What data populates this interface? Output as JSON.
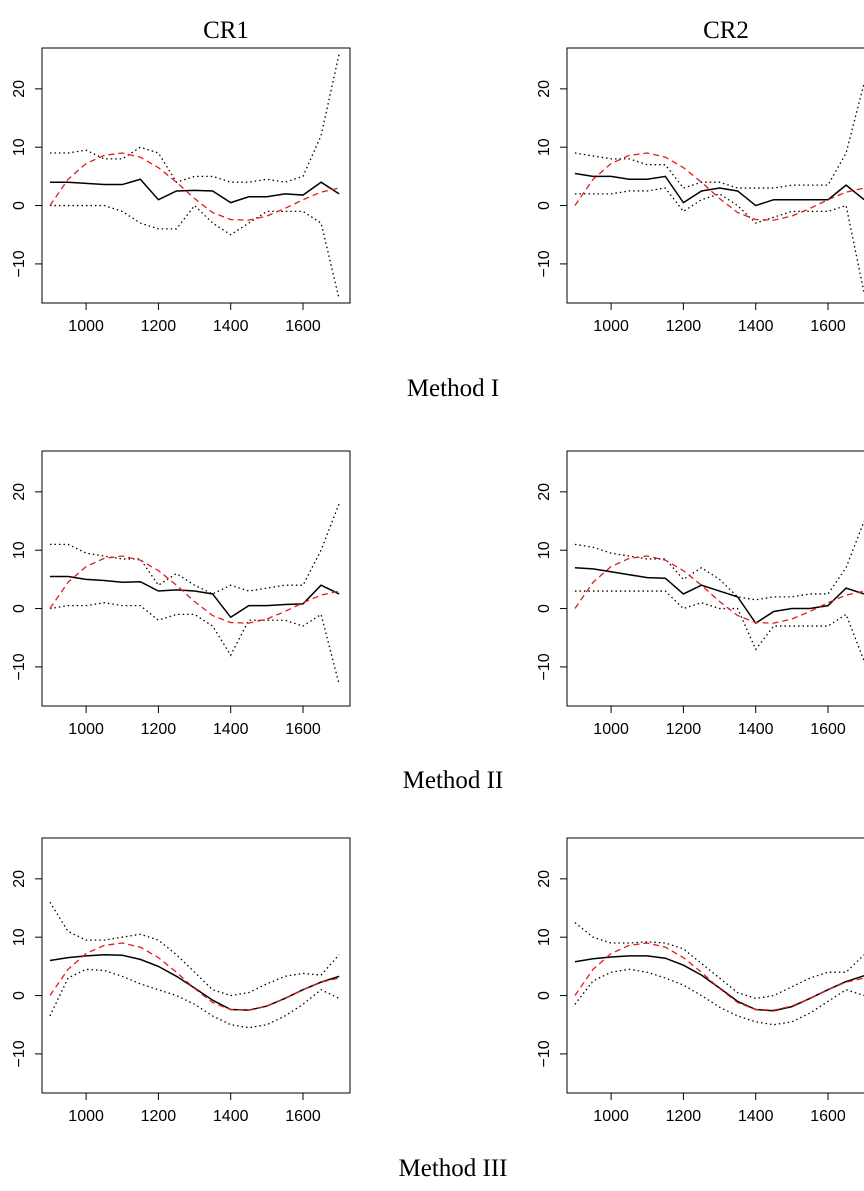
{
  "column_titles": [
    "CR1",
    "CR2"
  ],
  "row_titles": [
    "Method I",
    "Method II",
    "Method III"
  ],
  "chart_data": [
    {
      "type": "line",
      "x": [
        900,
        950,
        1000,
        1050,
        1100,
        1150,
        1200,
        1250,
        1300,
        1350,
        1400,
        1450,
        1500,
        1550,
        1600,
        1650,
        1700
      ],
      "xlim": [
        878,
        1730
      ],
      "ylim": [
        -16.7,
        27
      ],
      "xticks": [
        1000,
        1200,
        1400,
        1600
      ],
      "yticks": [
        {
          "value": -10,
          "label": "−10"
        },
        0,
        10,
        20
      ],
      "series": [
        {
          "color": "#000000",
          "style": "solid",
          "values": [
            4,
            4,
            3.8,
            3.6,
            3.6,
            4.5,
            1,
            2.5,
            2.6,
            2.5,
            0.5,
            1.5,
            1.5,
            2,
            1.8,
            4,
            2
          ]
        },
        {
          "color": "#000000",
          "style": "dotted",
          "values": [
            9,
            9,
            9.5,
            8,
            8,
            10,
            9,
            4,
            5,
            5,
            4,
            4,
            4.5,
            4,
            5,
            12,
            26
          ]
        },
        {
          "color": "#000000",
          "style": "dotted",
          "values": [
            0,
            0,
            0,
            0,
            -1,
            -3,
            -4,
            -4,
            0,
            -3,
            -5,
            -3,
            -1,
            -1,
            -1,
            -3,
            -16
          ]
        },
        {
          "color": "#e41a1c",
          "style": "dashed",
          "values": [
            0,
            4.5,
            7.2,
            8.6,
            9,
            8.3,
            6.5,
            4,
            1.2,
            -1.2,
            -2.4,
            -2.5,
            -1.8,
            -0.5,
            1,
            2.3,
            3
          ]
        }
      ]
    },
    {
      "type": "line",
      "x": [
        900,
        950,
        1000,
        1050,
        1100,
        1150,
        1200,
        1250,
        1300,
        1350,
        1400,
        1450,
        1500,
        1550,
        1600,
        1650,
        1700
      ],
      "xlim": [
        878,
        1730
      ],
      "ylim": [
        -16.7,
        27
      ],
      "xticks": [
        1000,
        1200,
        1400,
        1600
      ],
      "yticks": [
        {
          "value": -10,
          "label": "−10"
        },
        0,
        10,
        20
      ],
      "series": [
        {
          "color": "#000000",
          "style": "solid",
          "values": [
            5.5,
            5,
            5,
            4.5,
            4.5,
            5,
            0.5,
            2.5,
            3,
            2.5,
            0,
            1,
            1,
            1,
            1,
            3.5,
            1
          ]
        },
        {
          "color": "#000000",
          "style": "dotted",
          "values": [
            9,
            8.5,
            8,
            8,
            7,
            7,
            3,
            4,
            4,
            3,
            3,
            3,
            3.5,
            3.5,
            3.5,
            9,
            21
          ]
        },
        {
          "color": "#000000",
          "style": "dotted",
          "values": [
            2,
            2,
            2,
            2.5,
            2.5,
            3,
            -1,
            1,
            2,
            0,
            -3,
            -2,
            -1,
            -1,
            -1,
            0,
            -15
          ]
        },
        {
          "color": "#e41a1c",
          "style": "dashed",
          "values": [
            0,
            4.5,
            7.2,
            8.6,
            9,
            8.3,
            6.5,
            4,
            1.2,
            -1.2,
            -2.4,
            -2.5,
            -1.8,
            -0.5,
            1,
            2.3,
            3
          ]
        }
      ]
    },
    {
      "type": "line",
      "x": [
        900,
        950,
        1000,
        1050,
        1100,
        1150,
        1200,
        1250,
        1300,
        1350,
        1400,
        1450,
        1500,
        1550,
        1600,
        1650,
        1700
      ],
      "xlim": [
        878,
        1730
      ],
      "ylim": [
        -16.7,
        27
      ],
      "xticks": [
        1000,
        1200,
        1400,
        1600
      ],
      "yticks": [
        {
          "value": -10,
          "label": "−10"
        },
        0,
        10,
        20
      ],
      "series": [
        {
          "color": "#000000",
          "style": "solid",
          "values": [
            5.5,
            5.5,
            5,
            4.8,
            4.5,
            4.6,
            3,
            3.2,
            3,
            2.5,
            -1.5,
            0.5,
            0.5,
            0.7,
            0.8,
            4,
            2.5
          ]
        },
        {
          "color": "#000000",
          "style": "dotted",
          "values": [
            11,
            11,
            9.5,
            9,
            8.5,
            8.5,
            4,
            6,
            4,
            2.5,
            4,
            3,
            3.5,
            4,
            4,
            10,
            18
          ]
        },
        {
          "color": "#000000",
          "style": "dotted",
          "values": [
            0,
            0.5,
            0.5,
            1,
            0.5,
            0.5,
            -2,
            -1,
            -1,
            -3,
            -8,
            -2,
            -2,
            -2,
            -3,
            -1,
            -13
          ]
        },
        {
          "color": "#e41a1c",
          "style": "dashed",
          "values": [
            0,
            4.5,
            7.2,
            8.6,
            9,
            8.3,
            6.5,
            4,
            1.2,
            -1.2,
            -2.4,
            -2.5,
            -1.8,
            -0.5,
            1,
            2.3,
            3
          ]
        }
      ]
    },
    {
      "type": "line",
      "x": [
        900,
        950,
        1000,
        1050,
        1100,
        1150,
        1200,
        1250,
        1300,
        1350,
        1400,
        1450,
        1500,
        1550,
        1600,
        1650,
        1700
      ],
      "xlim": [
        878,
        1730
      ],
      "ylim": [
        -16.7,
        27
      ],
      "xticks": [
        1000,
        1200,
        1400,
        1600
      ],
      "yticks": [
        {
          "value": -10,
          "label": "−10"
        },
        0,
        10,
        20
      ],
      "series": [
        {
          "color": "#000000",
          "style": "solid",
          "values": [
            7,
            6.8,
            6.3,
            5.8,
            5.3,
            5.2,
            2.5,
            4,
            3,
            2,
            -2.5,
            -0.5,
            0,
            0,
            0.5,
            3.5,
            2.5
          ]
        },
        {
          "color": "#000000",
          "style": "dotted",
          "values": [
            11,
            10.5,
            9.5,
            9,
            8.5,
            8.5,
            5,
            7,
            5,
            2,
            1.5,
            2,
            2,
            2.5,
            2.5,
            7,
            15
          ]
        },
        {
          "color": "#000000",
          "style": "dotted",
          "values": [
            3,
            3,
            3,
            3,
            3,
            3,
            0,
            1,
            0,
            0,
            -7,
            -3,
            -3,
            -3,
            -3,
            -1,
            -9
          ]
        },
        {
          "color": "#e41a1c",
          "style": "dashed",
          "values": [
            0,
            4.5,
            7.2,
            8.6,
            9,
            8.3,
            6.5,
            4,
            1.2,
            -1.2,
            -2.4,
            -2.5,
            -1.8,
            -0.5,
            1,
            2.3,
            3
          ]
        }
      ]
    },
    {
      "type": "line",
      "x": [
        900,
        950,
        1000,
        1050,
        1100,
        1150,
        1200,
        1250,
        1300,
        1350,
        1400,
        1450,
        1500,
        1550,
        1600,
        1650,
        1700
      ],
      "xlim": [
        878,
        1730
      ],
      "ylim": [
        -16.7,
        27
      ],
      "xticks": [
        1000,
        1200,
        1400,
        1600
      ],
      "yticks": [
        {
          "value": -10,
          "label": "−10"
        },
        0,
        10,
        20
      ],
      "series": [
        {
          "color": "#000000",
          "style": "solid",
          "values": [
            6,
            6.5,
            6.8,
            7,
            6.9,
            6.2,
            5,
            3.3,
            1.3,
            -0.8,
            -2.4,
            -2.5,
            -1.8,
            -0.5,
            1,
            2.3,
            3.3
          ]
        },
        {
          "color": "#000000",
          "style": "dotted",
          "values": [
            16,
            11,
            9.5,
            9.5,
            10,
            10.5,
            9.5,
            7,
            4,
            1,
            0,
            0.5,
            2,
            3.3,
            3.8,
            3.5,
            7
          ]
        },
        {
          "color": "#000000",
          "style": "dotted",
          "values": [
            -3.5,
            3,
            4.5,
            4.3,
            3.3,
            2,
            1,
            0,
            -1.5,
            -3.5,
            -5,
            -5.5,
            -5,
            -3.5,
            -1.5,
            1,
            -0.5
          ]
        },
        {
          "color": "#e41a1c",
          "style": "dashed",
          "values": [
            0,
            4.5,
            7.2,
            8.6,
            9,
            8.3,
            6.5,
            4,
            1.2,
            -1.2,
            -2.4,
            -2.5,
            -1.8,
            -0.5,
            1,
            2.3,
            3
          ]
        }
      ]
    },
    {
      "type": "line",
      "x": [
        900,
        950,
        1000,
        1050,
        1100,
        1150,
        1200,
        1250,
        1300,
        1350,
        1400,
        1450,
        1500,
        1550,
        1600,
        1650,
        1700
      ],
      "xlim": [
        878,
        1730
      ],
      "ylim": [
        -16.7,
        27
      ],
      "xticks": [
        1000,
        1200,
        1400,
        1600
      ],
      "yticks": [
        {
          "value": -10,
          "label": "−10"
        },
        0,
        10,
        20
      ],
      "series": [
        {
          "color": "#000000",
          "style": "solid",
          "values": [
            5.8,
            6.3,
            6.6,
            6.8,
            6.8,
            6.4,
            5.2,
            3.5,
            1.3,
            -1,
            -2.4,
            -2.6,
            -1.9,
            -0.5,
            1,
            2.4,
            3.4
          ]
        },
        {
          "color": "#000000",
          "style": "dotted",
          "values": [
            12.5,
            10,
            9,
            9,
            9.2,
            9,
            8,
            5.5,
            3,
            0.5,
            -0.5,
            0,
            1.5,
            3,
            4,
            4,
            7
          ]
        },
        {
          "color": "#000000",
          "style": "dotted",
          "values": [
            -1.5,
            2.5,
            4,
            4.5,
            4,
            3,
            1.8,
            0,
            -2,
            -3.5,
            -4.5,
            -5,
            -4.5,
            -3,
            -1,
            1,
            0
          ]
        },
        {
          "color": "#e41a1c",
          "style": "dashed",
          "values": [
            0,
            4.5,
            7.2,
            8.6,
            9,
            8.3,
            6.5,
            4,
            1.2,
            -1.2,
            -2.4,
            -2.5,
            -1.8,
            -0.5,
            1,
            2.3,
            3
          ]
        }
      ]
    }
  ]
}
